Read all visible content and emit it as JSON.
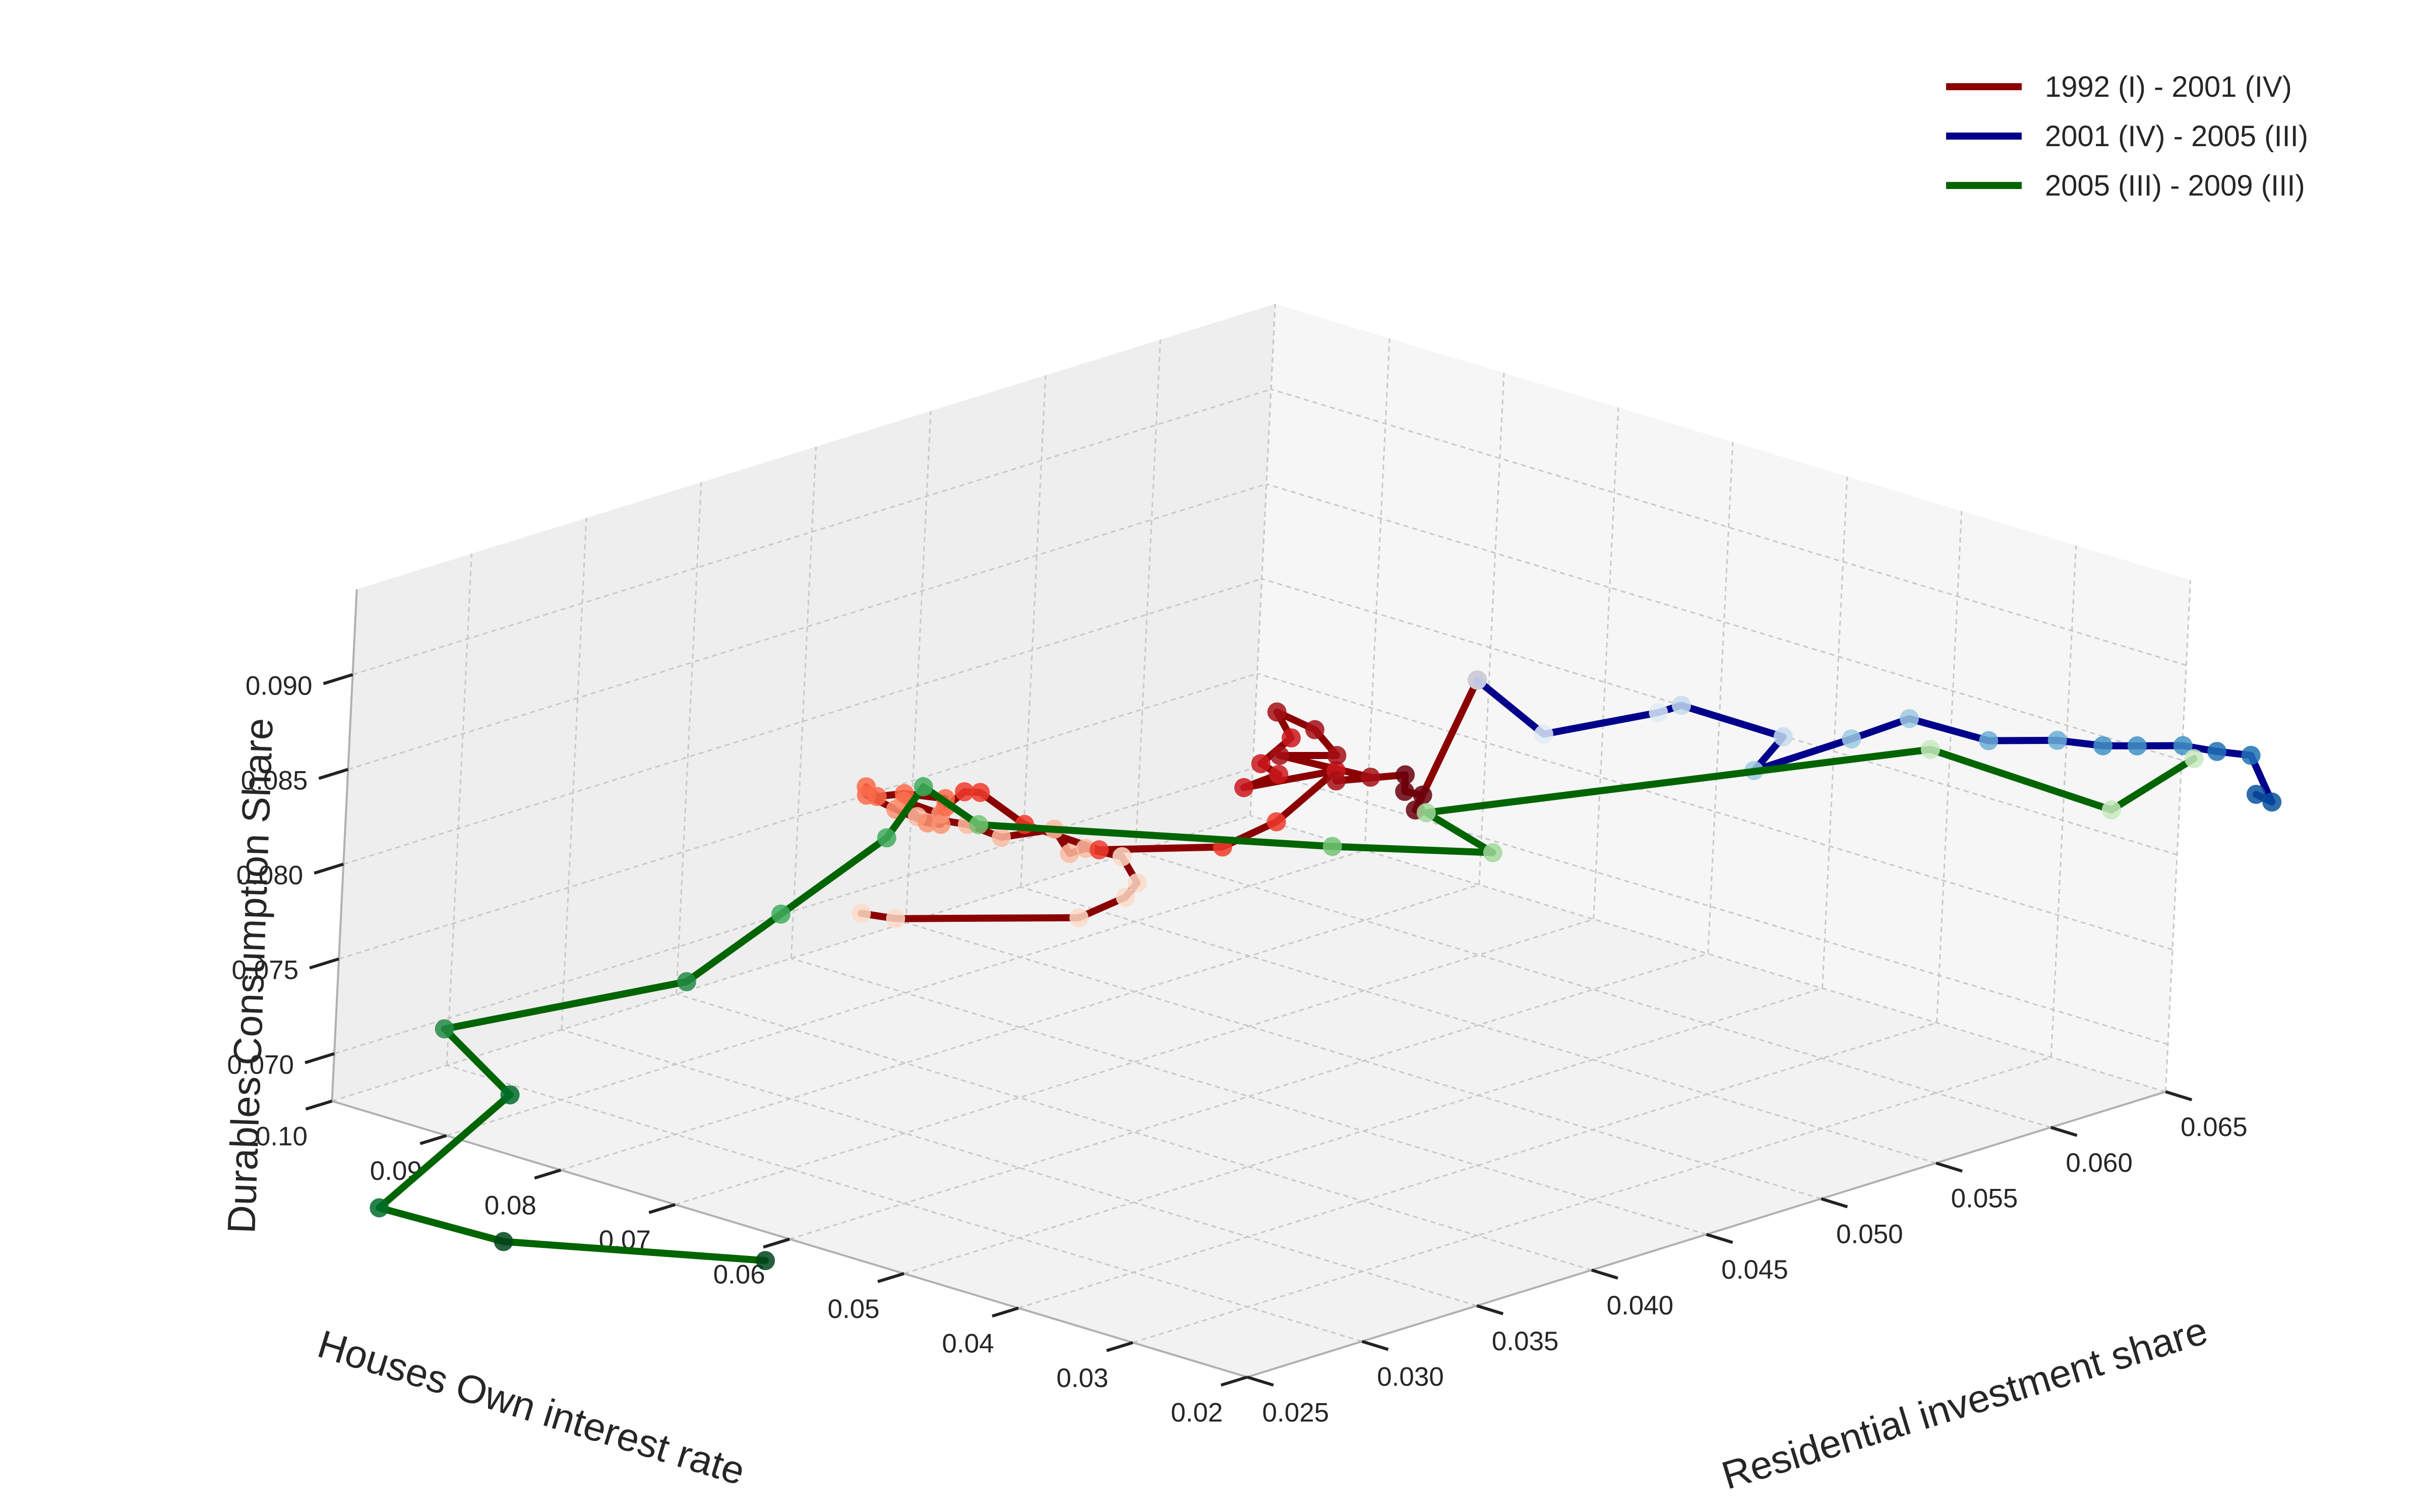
{
  "chart_data": {
    "type": "line3d",
    "x_axis": {
      "label": "Residential investment share",
      "range": [
        0.025,
        0.065
      ],
      "ticks": [
        "0.025",
        "0.030",
        "0.035",
        "0.040",
        "0.045",
        "0.050",
        "0.055",
        "0.060",
        "0.065"
      ]
    },
    "y_axis": {
      "label": "Houses Own interest rate",
      "range": [
        0.1,
        0.02
      ],
      "ticks": [
        "0.10",
        "0.09",
        "0.08",
        "0.07",
        "0.06",
        "0.05",
        "0.04",
        "0.03",
        "0.02"
      ]
    },
    "z_axis": {
      "label": "Durables Consumption Share",
      "range": [
        0.0675,
        0.0945
      ],
      "ticks": [
        "0.070",
        "0.075",
        "0.080",
        "0.085",
        "0.090"
      ]
    },
    "grid": true,
    "legend_position": "top-right",
    "series": [
      {
        "name": "1992 (I) - 2001 (IV)",
        "color": "#8b0000",
        "marker_colors": [
          "#fddbc7",
          "#fcbba1",
          "#fc9272",
          "#fb6a4a",
          "#ef3b2c",
          "#cb181d",
          "#a50f15",
          "#67000d"
        ],
        "points": [
          [
            0.0285,
            0.062,
            0.083
          ],
          [
            0.029,
            0.06,
            0.0829
          ],
          [
            0.033,
            0.052,
            0.0829
          ],
          [
            0.0345,
            0.051,
            0.0836
          ],
          [
            0.0355,
            0.052,
            0.0838
          ],
          [
            0.0358,
            0.054,
            0.0847
          ],
          [
            0.0352,
            0.056,
            0.085
          ],
          [
            0.0345,
            0.056,
            0.085
          ],
          [
            0.0348,
            0.058,
            0.0858
          ],
          [
            0.0335,
            0.06,
            0.0855
          ],
          [
            0.033,
            0.062,
            0.086
          ],
          [
            0.0318,
            0.064,
            0.0865
          ],
          [
            0.0322,
            0.066,
            0.0868
          ],
          [
            0.0318,
            0.062,
            0.087
          ],
          [
            0.0308,
            0.06,
            0.0872
          ],
          [
            0.0302,
            0.06,
            0.0875
          ],
          [
            0.0298,
            0.062,
            0.088
          ],
          [
            0.0295,
            0.064,
            0.0885
          ],
          [
            0.0305,
            0.066,
            0.0882
          ],
          [
            0.031,
            0.066,
            0.0875
          ],
          [
            0.0322,
            0.066,
            0.0872
          ],
          [
            0.033,
            0.064,
            0.087
          ],
          [
            0.032,
            0.062,
            0.0873
          ],
          [
            0.0328,
            0.062,
            0.0878
          ],
          [
            0.0335,
            0.062,
            0.0875
          ],
          [
            0.0345,
            0.06,
            0.0858
          ],
          [
            0.0358,
            0.056,
            0.0847
          ],
          [
            0.0392,
            0.052,
            0.0843
          ],
          [
            0.0405,
            0.05,
            0.0855
          ],
          [
            0.042,
            0.048,
            0.088
          ],
          [
            0.0395,
            0.051,
            0.0875
          ],
          [
            0.0405,
            0.05,
            0.088
          ],
          [
            0.0402,
            0.051,
            0.0885
          ],
          [
            0.042,
            0.052,
            0.089
          ],
          [
            0.0408,
            0.051,
            0.091
          ],
          [
            0.042,
            0.05,
            0.0898
          ],
          [
            0.042,
            0.048,
            0.0888
          ],
          [
            0.0405,
            0.05,
            0.089
          ],
          [
            0.042,
            0.045,
            0.0882
          ],
          [
            0.041,
            0.046,
            0.0882
          ],
          [
            0.0425,
            0.043,
            0.0885
          ],
          [
            0.042,
            0.042,
            0.088
          ],
          [
            0.0428,
            0.042,
            0.0875
          ],
          [
            0.042,
            0.041,
            0.0872
          ],
          [
            0.046,
            0.044,
            0.092
          ]
        ]
      },
      {
        "name": "2001 (IV) - 2005 (III)",
        "color": "#00008b",
        "marker_colors": [
          "#deebf7",
          "#c6dbef",
          "#9ecae1",
          "#6baed6",
          "#4292c6",
          "#2171b5",
          "#08519c"
        ],
        "points": [
          [
            0.046,
            0.044,
            0.092
          ],
          [
            0.047,
            0.04,
            0.0895
          ],
          [
            0.051,
            0.038,
            0.0895
          ],
          [
            0.052,
            0.038,
            0.0895
          ],
          [
            0.054,
            0.033,
            0.088
          ],
          [
            0.0533,
            0.034,
            0.0863
          ],
          [
            0.056,
            0.031,
            0.0875
          ],
          [
            0.058,
            0.03,
            0.088
          ],
          [
            0.0595,
            0.026,
            0.087
          ],
          [
            0.061,
            0.023,
            0.087
          ],
          [
            0.062,
            0.021,
            0.0867
          ],
          [
            0.063,
            0.02,
            0.0865
          ],
          [
            0.064,
            0.018,
            0.0865
          ],
          [
            0.065,
            0.017,
            0.086
          ],
          [
            0.066,
            0.016,
            0.0856
          ],
          [
            0.066,
            0.014,
            0.0835
          ],
          [
            0.0658,
            0.015,
            0.0838
          ]
        ]
      },
      {
        "name": "2005 (III) - 2009 (III)",
        "color": "#006400",
        "marker_colors": [
          "#c7e9c0",
          "#a1d99b",
          "#74c476",
          "#41ab5d",
          "#238b45",
          "#006d2c",
          "#00441b"
        ],
        "points": [
          [
            0.064,
            0.017,
            0.086
          ],
          [
            0.062,
            0.02,
            0.0835
          ],
          [
            0.059,
            0.03,
            0.086
          ],
          [
            0.043,
            0.042,
            0.0865
          ],
          [
            0.045,
            0.04,
            0.084
          ],
          [
            0.042,
            0.048,
            0.084
          ],
          [
            0.0335,
            0.062,
            0.0858
          ],
          [
            0.032,
            0.064,
            0.088
          ],
          [
            0.031,
            0.065,
            0.0855
          ],
          [
            0.027,
            0.066,
            0.0828
          ],
          [
            0.024,
            0.068,
            0.08
          ],
          [
            0.0175,
            0.076,
            0.0785
          ],
          [
            0.019,
            0.073,
            0.075
          ],
          [
            0.015,
            0.076,
            0.07
          ],
          [
            0.018,
            0.071,
            0.068
          ],
          [
            0.025,
            0.062,
            0.066
          ]
        ]
      }
    ]
  }
}
